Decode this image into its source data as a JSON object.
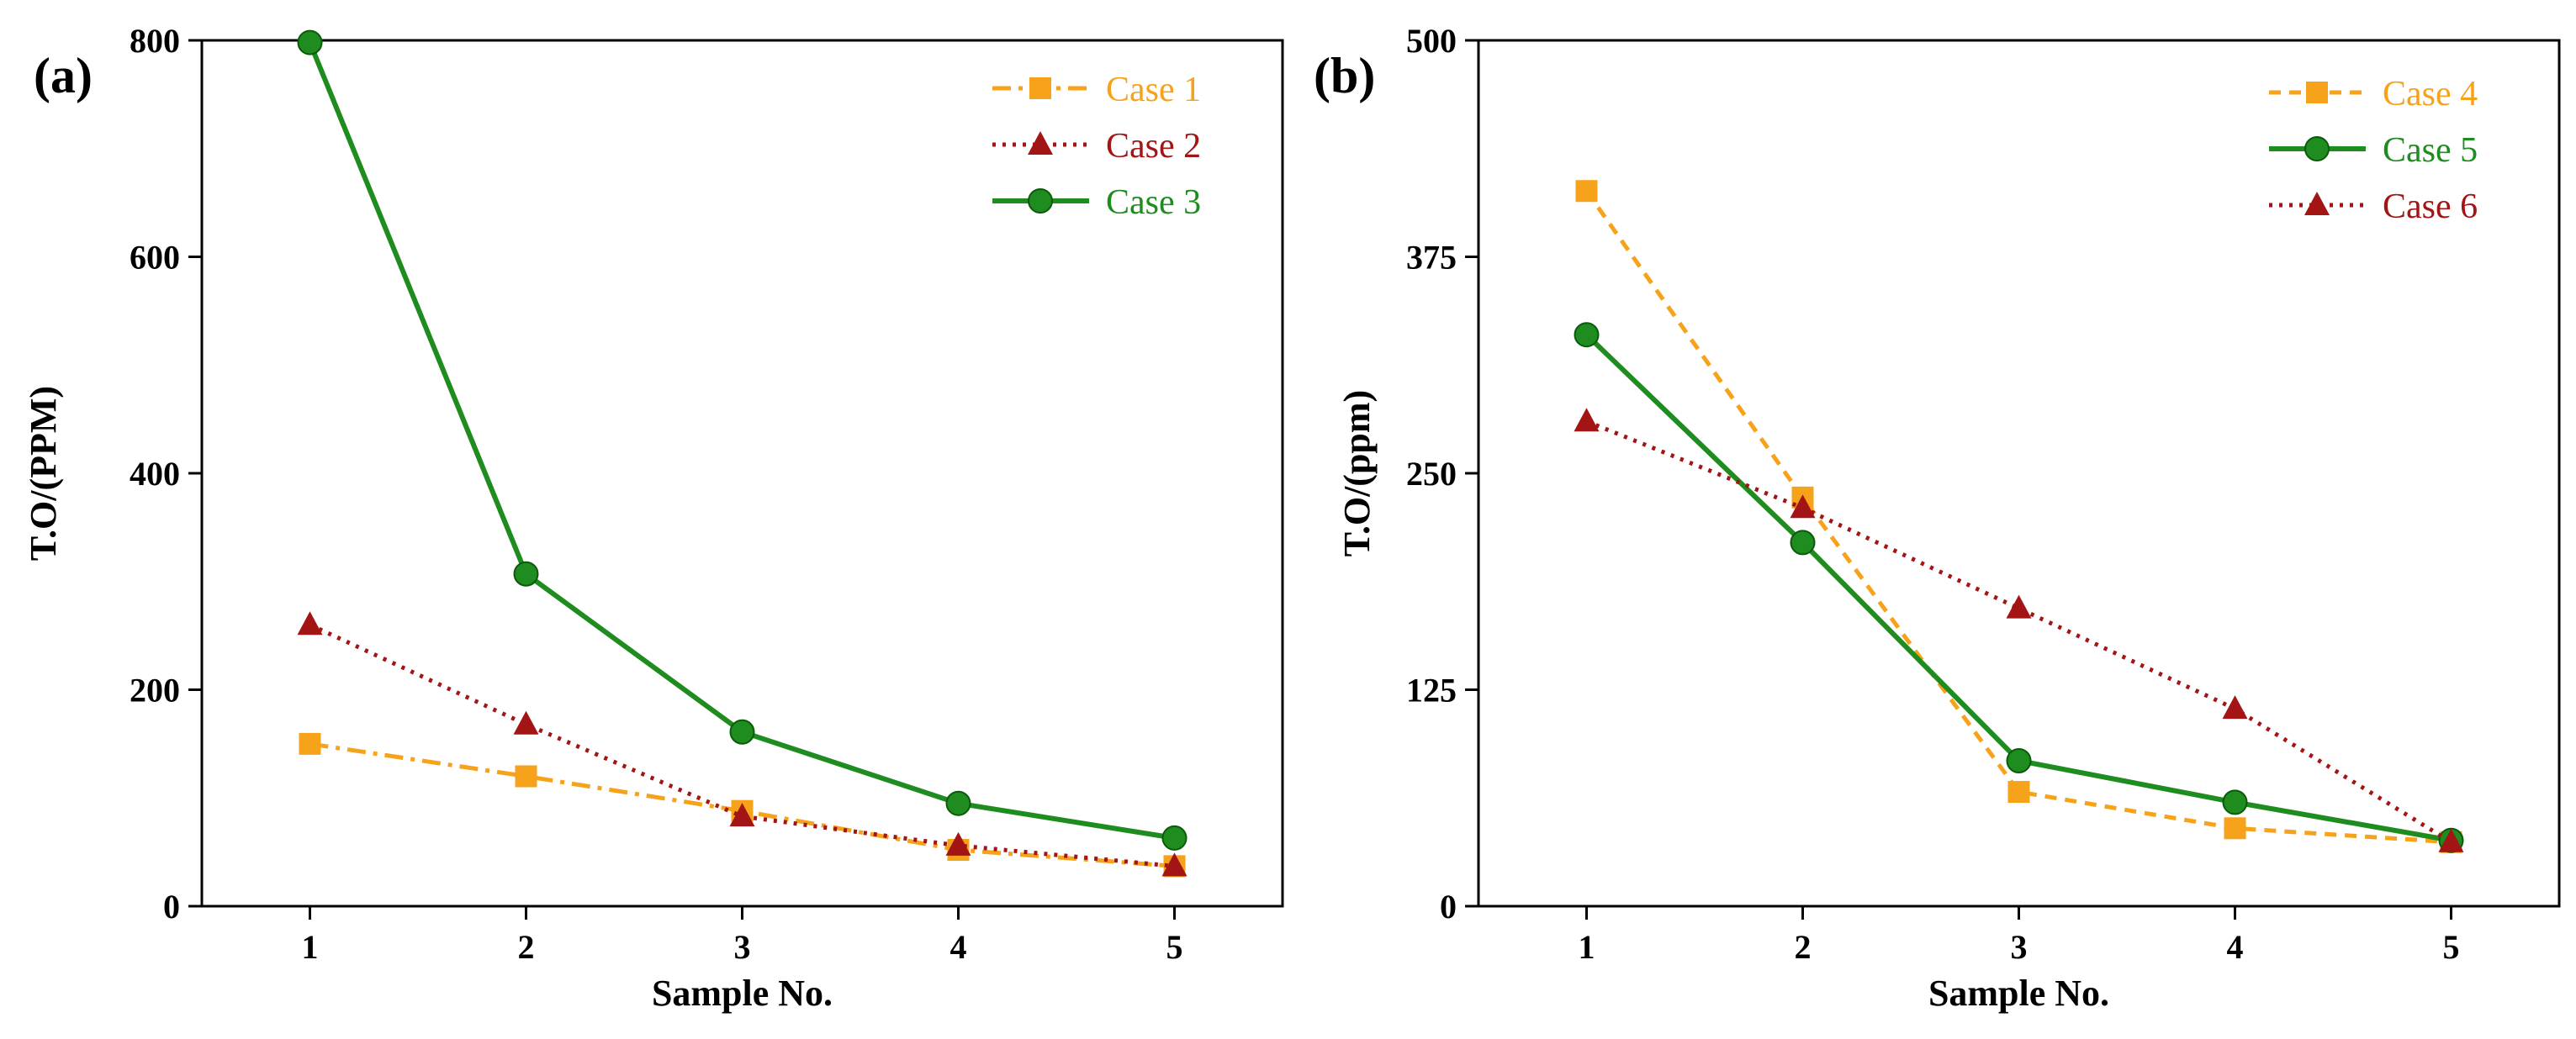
{
  "colors": {
    "orange": "#F7A21B",
    "darkred": "#A31515",
    "green": "#1F8C1F"
  },
  "chart_data": [
    {
      "type": "line",
      "panel_label": "(a)",
      "xlabel": "Sample No.",
      "ylabel": "T.O/(PPM)",
      "categories": [
        "1",
        "2",
        "3",
        "4",
        "5"
      ],
      "x": [
        1,
        2,
        3,
        4,
        5
      ],
      "xlim": [
        0.5,
        5.5
      ],
      "ylim": [
        0,
        800
      ],
      "yticks": [
        0,
        200,
        400,
        600,
        800
      ],
      "ytick_labels": [
        "0",
        "200",
        "400",
        "600",
        "800"
      ],
      "legend_position": "top-right",
      "series": [
        {
          "name": "Case 1",
          "values": [
            150,
            120,
            88,
            52,
            37
          ],
          "color": "#F7A21B",
          "marker": "square",
          "line": "dashdot"
        },
        {
          "name": "Case 2",
          "values": [
            260,
            168,
            83,
            56,
            37
          ],
          "color": "#A31515",
          "marker": "triangle",
          "line": "dotted"
        },
        {
          "name": "Case 3",
          "values": [
            798,
            307,
            161,
            95,
            63
          ],
          "color": "#1F8C1F",
          "marker": "circle",
          "line": "solid"
        }
      ]
    },
    {
      "type": "line",
      "panel_label": "(b)",
      "xlabel": "Sample No.",
      "ylabel": "T.O/(ppm)",
      "categories": [
        "1",
        "2",
        "3",
        "4",
        "5"
      ],
      "x": [
        1,
        2,
        3,
        4,
        5
      ],
      "xlim": [
        0.5,
        5.5
      ],
      "ylim": [
        0,
        500
      ],
      "yticks": [
        0,
        125,
        250,
        375,
        500
      ],
      "ytick_labels": [
        "0",
        "125",
        "250",
        "375",
        "500"
      ],
      "legend_position": "top-right",
      "series": [
        {
          "name": "Case 4",
          "values": [
            413,
            236,
            66,
            45,
            37
          ],
          "color": "#F7A21B",
          "marker": "square",
          "line": "dashed"
        },
        {
          "name": "Case 5",
          "values": [
            330,
            210,
            84,
            60,
            38
          ],
          "color": "#1F8C1F",
          "marker": "circle",
          "line": "solid"
        },
        {
          "name": "Case 6",
          "values": [
            280,
            230,
            172,
            114,
            37
          ],
          "color": "#A31515",
          "marker": "triangle",
          "line": "dotted"
        }
      ]
    }
  ]
}
